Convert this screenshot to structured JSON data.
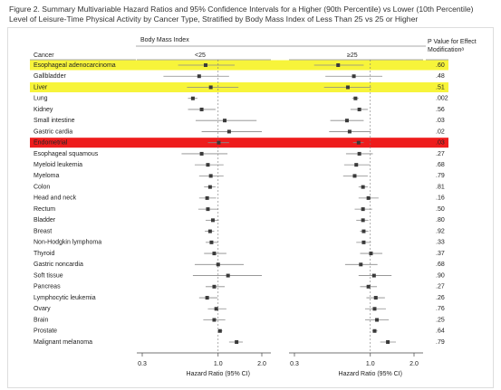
{
  "chart_data": {
    "type": "forest",
    "title": "Figure 2. Summary Multivariable Hazard Ratios and 95% Confidence Intervals for a Higher (90th Percentile) vs Lower (10th Percentile) Level of Leisure-Time Physical Activity by Cancer Type, Stratified by Body Mass Index of Less Than 25 vs 25 or Higher",
    "group_label": "Body Mass Index",
    "category_header": "Cancer",
    "pvalue_header": [
      "P Value for Effect",
      "Modificationᵃ"
    ],
    "xlabel": "Hazard Ratio (95% CI)",
    "xscale": "log",
    "xlim": [
      0.3,
      2.0
    ],
    "xticks": [
      0.3,
      {
        "value": 1,
        "label": "1.0"
      },
      {
        "value": 2,
        "label": "2.0"
      }
    ],
    "reference_line": 1,
    "categories": [
      "Esophageal adenocarcinoma",
      "Gallbladder",
      "Liver",
      "Lung",
      "Kidney",
      "Small intestine",
      "Gastric cardia",
      "Endometrial",
      "Esophageal squamous",
      "Myeloid leukemia",
      "Myeloma",
      "Colon",
      "Head and neck",
      "Rectum",
      "Bladder",
      "Breast",
      "Non-Hodgkin lymphoma",
      "Thyroid",
      "Gastric noncardia",
      "Soft tissue",
      "Pancreas",
      "Lymphocytic leukemia",
      "Ovary",
      "Brain",
      "Prostate",
      "Malignant melanoma"
    ],
    "row_colors": [
      "#f7f43a",
      null,
      "#f7f43a",
      null,
      null,
      null,
      null,
      "#ee1c1c",
      null,
      null,
      null,
      null,
      null,
      null,
      null,
      null,
      null,
      null,
      null,
      null,
      null,
      null,
      null,
      null,
      null,
      null
    ],
    "pvalues": {
      "values": [
        0.6,
        0.48,
        0.51,
        0.002,
        0.56,
        0.03,
        0.02,
        0.03,
        0.27,
        0.68,
        0.79,
        0.81,
        0.16,
        0.5,
        0.8,
        0.92,
        0.33,
        0.37,
        0.68,
        0.9,
        0.27,
        0.26,
        0.76,
        0.25,
        0.64,
        0.79
      ],
      "value_labels": [
        ".60",
        ".48",
        ".51",
        ".002",
        ".56",
        ".03",
        ".02",
        ".03",
        ".27",
        ".68",
        ".79",
        ".81",
        ".16",
        ".50",
        ".80",
        ".92",
        ".33",
        ".37",
        ".68",
        ".90",
        ".27",
        ".26",
        ".76",
        ".25",
        ".64",
        ".79"
      ]
    },
    "color": "#3a3a3a",
    "ci_color": "#8a8a8a",
    "series": [
      {
        "name": "<25",
        "values": [
          0.82,
          0.74,
          0.89,
          0.67,
          0.77,
          1.11,
          1.19,
          1.01,
          0.77,
          0.85,
          0.89,
          0.88,
          0.84,
          0.85,
          0.92,
          0.88,
          0.9,
          0.94,
          1.0,
          1.17,
          0.94,
          0.84,
          0.97,
          0.94,
          1.03,
          1.34
        ],
        "lower": [
          0.53,
          0.42,
          0.61,
          0.62,
          0.62,
          0.7,
          0.77,
          0.85,
          0.56,
          0.69,
          0.74,
          0.8,
          0.74,
          0.73,
          0.82,
          0.81,
          0.82,
          0.8,
          0.69,
          0.67,
          0.82,
          0.74,
          0.85,
          0.79,
          0.99,
          1.19
        ],
        "upper": [
          1.3,
          1.19,
          1.38,
          0.72,
          0.96,
          1.84,
          2.0,
          1.19,
          1.16,
          1.09,
          1.09,
          0.96,
          0.97,
          1.0,
          1.01,
          0.94,
          1.0,
          1.14,
          1.5,
          2.0,
          1.11,
          0.99,
          1.14,
          1.12,
          1.07,
          1.48
        ]
      },
      {
        "name": "≥25",
        "values": [
          0.6,
          0.77,
          0.7,
          0.79,
          0.84,
          0.69,
          0.72,
          0.83,
          0.84,
          0.8,
          0.78,
          0.89,
          0.97,
          0.89,
          0.89,
          0.9,
          0.9,
          1.01,
          0.86,
          1.06,
          0.97,
          1.09,
          1.07,
          1.11,
          1.07,
          1.32
        ],
        "lower": [
          0.41,
          0.49,
          0.48,
          0.75,
          0.73,
          0.53,
          0.52,
          0.76,
          0.68,
          0.66,
          0.65,
          0.83,
          0.83,
          0.78,
          0.8,
          0.85,
          0.8,
          0.85,
          0.67,
          0.83,
          0.85,
          0.94,
          0.92,
          0.92,
          1.03,
          1.17
        ],
        "upper": [
          0.9,
          1.21,
          1.01,
          0.83,
          0.96,
          0.9,
          1.01,
          0.9,
          1.04,
          0.99,
          0.96,
          0.96,
          1.14,
          1.03,
          0.97,
          0.97,
          1.01,
          1.21,
          1.12,
          1.4,
          1.11,
          1.26,
          1.28,
          1.34,
          1.12,
          1.5
        ]
      }
    ]
  }
}
